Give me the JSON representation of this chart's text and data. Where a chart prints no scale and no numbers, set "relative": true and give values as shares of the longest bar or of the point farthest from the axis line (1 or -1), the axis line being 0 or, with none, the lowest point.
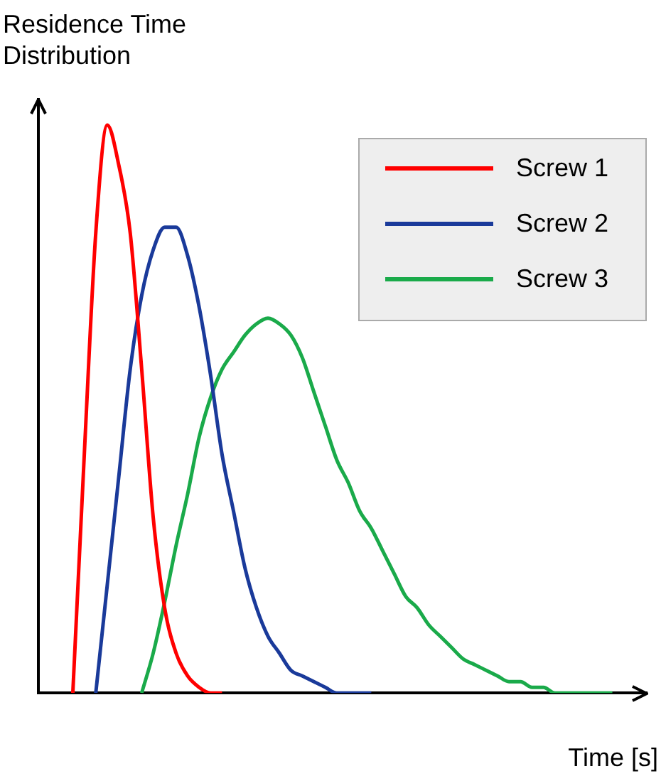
{
  "chart_data": {
    "type": "line",
    "ylabel": "Residence Time Distribution",
    "xlabel": "Time [s]",
    "relative": true,
    "legend": "top right",
    "marker": "none",
    "grid": false,
    "categories": [
      null,
      null,
      null,
      null,
      null,
      null,
      null,
      null,
      null,
      null,
      null,
      null,
      null,
      null,
      null,
      null,
      null,
      null,
      null,
      null,
      null,
      null,
      null,
      null,
      null,
      null,
      null,
      null,
      null,
      null,
      null,
      null,
      null,
      null,
      null,
      null,
      null,
      null,
      null,
      null,
      null,
      null,
      null,
      null,
      null,
      null,
      null,
      null,
      null,
      null,
      null,
      null,
      null,
      null
    ],
    "series": [
      {
        "name": "Screw 1",
        "color": "#ff0000",
        "values": [
          null,
          null,
          null,
          0,
          0.42,
          0.81,
          1,
          0.93,
          0.81,
          0.57,
          0.31,
          0.15,
          0.07,
          0.03,
          0.01,
          0,
          0,
          null,
          null,
          null,
          null,
          null,
          null,
          null,
          null,
          null,
          null,
          null,
          null,
          null,
          null,
          null,
          null,
          null,
          null,
          null,
          null,
          null,
          null,
          null,
          null,
          null,
          null,
          null,
          null,
          null,
          null,
          null,
          null,
          null,
          null,
          null,
          null,
          null
        ]
      },
      {
        "name": "Screw 2",
        "color": "#1a3a9a",
        "values": [
          null,
          null,
          null,
          null,
          null,
          0,
          0.19,
          0.38,
          0.57,
          0.7,
          0.78,
          0.82,
          0.82,
          0.77,
          0.68,
          0.56,
          0.42,
          0.32,
          0.22,
          0.15,
          0.1,
          0.07,
          0.04,
          0.03,
          0.02,
          0.01,
          0,
          0,
          0,
          0,
          null,
          null,
          null,
          null,
          null,
          null,
          null,
          null,
          null,
          null,
          null,
          null,
          null,
          null,
          null,
          null,
          null,
          null,
          null,
          null,
          null,
          null,
          null,
          null
        ]
      },
      {
        "name": "Screw 3",
        "color": "#1aaa4a",
        "values": [
          null,
          null,
          null,
          null,
          null,
          null,
          null,
          null,
          null,
          0,
          0.07,
          0.16,
          0.26,
          0.35,
          0.45,
          0.52,
          0.57,
          0.6,
          0.63,
          0.65,
          0.66,
          0.65,
          0.63,
          0.59,
          0.53,
          0.47,
          0.41,
          0.37,
          0.32,
          0.29,
          0.25,
          0.21,
          0.17,
          0.15,
          0.12,
          0.1,
          0.08,
          0.06,
          0.05,
          0.04,
          0.03,
          0.02,
          0.02,
          0.01,
          0.01,
          0,
          0,
          0,
          0,
          0,
          0,
          null,
          null,
          null
        ]
      }
    ]
  }
}
